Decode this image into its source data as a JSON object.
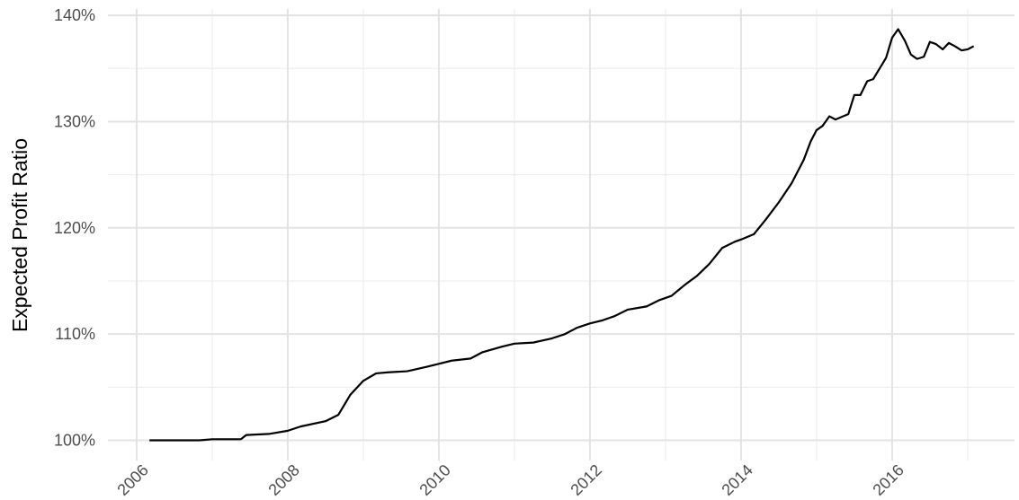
{
  "chart_data": {
    "type": "line",
    "y_label": "Expected Profit Ratio",
    "x": [
      2006.17,
      2006.5,
      2006.83,
      2007.0,
      2007.25,
      2007.38,
      2007.45,
      2007.75,
      2008.0,
      2008.17,
      2008.5,
      2008.67,
      2008.83,
      2009.0,
      2009.17,
      2009.33,
      2009.58,
      2009.83,
      2010.0,
      2010.17,
      2010.42,
      2010.58,
      2010.83,
      2011.0,
      2011.25,
      2011.5,
      2011.67,
      2011.83,
      2012.0,
      2012.17,
      2012.33,
      2012.5,
      2012.75,
      2012.92,
      2013.08,
      2013.25,
      2013.42,
      2013.58,
      2013.75,
      2013.92,
      2014.0,
      2014.17,
      2014.33,
      2014.5,
      2014.67,
      2014.83,
      2014.92,
      2015.0,
      2015.08,
      2015.17,
      2015.25,
      2015.42,
      2015.5,
      2015.58,
      2015.67,
      2015.75,
      2015.92,
      2016.0,
      2016.08,
      2016.17,
      2016.25,
      2016.33,
      2016.42,
      2016.5,
      2016.58,
      2016.67,
      2016.75,
      2016.83,
      2016.92,
      2017.0,
      2017.08
    ],
    "series": [
      {
        "color": "#000000",
        "values": [
          100.0,
          100.0,
          100.0,
          100.1,
          100.1,
          100.1,
          100.5,
          100.6,
          100.9,
          101.3,
          101.8,
          102.4,
          104.3,
          105.6,
          106.3,
          106.4,
          106.5,
          106.9,
          107.2,
          107.5,
          107.7,
          108.3,
          108.8,
          109.1,
          109.2,
          109.6,
          110.0,
          110.6,
          111.0,
          111.3,
          111.7,
          112.3,
          112.6,
          113.2,
          113.6,
          114.6,
          115.5,
          116.6,
          118.1,
          118.7,
          118.9,
          119.4,
          120.8,
          122.4,
          124.2,
          126.4,
          128.1,
          129.2,
          129.6,
          130.5,
          130.2,
          130.7,
          132.5,
          132.5,
          133.8,
          134.0,
          136.0,
          137.9,
          138.7,
          137.6,
          136.3,
          135.9,
          136.1,
          137.5,
          137.3,
          136.8,
          137.4,
          137.1,
          136.7,
          136.8,
          137.1
        ]
      }
    ],
    "xlim": [
      2005.62,
      2017.62
    ],
    "xticks": [
      2006,
      2008,
      2010,
      2012,
      2014,
      2016
    ],
    "xminor": [
      2007,
      2009,
      2011,
      2013,
      2015,
      2017
    ],
    "ylim": [
      98.1,
      140.6
    ],
    "yticks": [
      {
        "value": 100,
        "label": "100%"
      },
      {
        "value": 110,
        "label": "110%"
      },
      {
        "value": 120,
        "label": "120%"
      },
      {
        "value": 130,
        "label": "130%"
      },
      {
        "value": 140,
        "label": "140%"
      }
    ],
    "yminor": [
      105,
      115,
      125,
      135
    ],
    "grid": true
  }
}
